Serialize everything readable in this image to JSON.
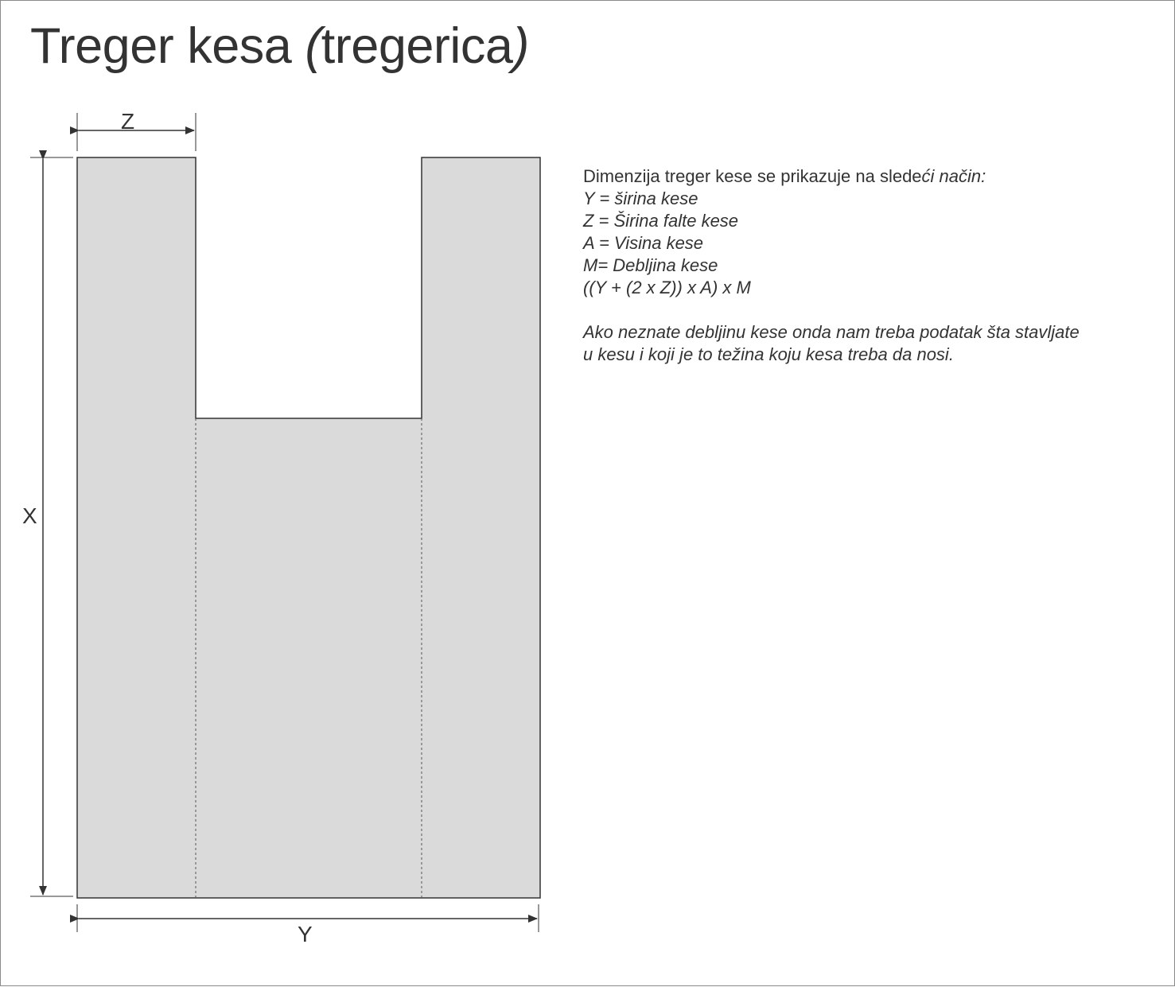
{
  "title": {
    "normal": "Treger kesa ",
    "italic_open": "(",
    "middle": "tregerica",
    "italic_close": ")"
  },
  "diagram": {
    "labels": {
      "z": "Z",
      "x": "X",
      "y": "Y"
    },
    "fill_color": "#dadada",
    "stroke_color": "#333333"
  },
  "info": {
    "intro_normal": "Dimenzija treger kese se prikazuje na slede",
    "intro_italic": "ći način:",
    "lines": [
      "Y = širina kese",
      "Z = Širina falte kese",
      "A = Visina kese",
      "M= Debljina kese",
      "((Y + (2 x Z)) x A) x M"
    ],
    "note_lines": [
      "Ako neznate debljinu kese onda nam treba podatak šta stavljate",
      "u kesu i koji je to težina koju kesa treba da nosi."
    ]
  }
}
